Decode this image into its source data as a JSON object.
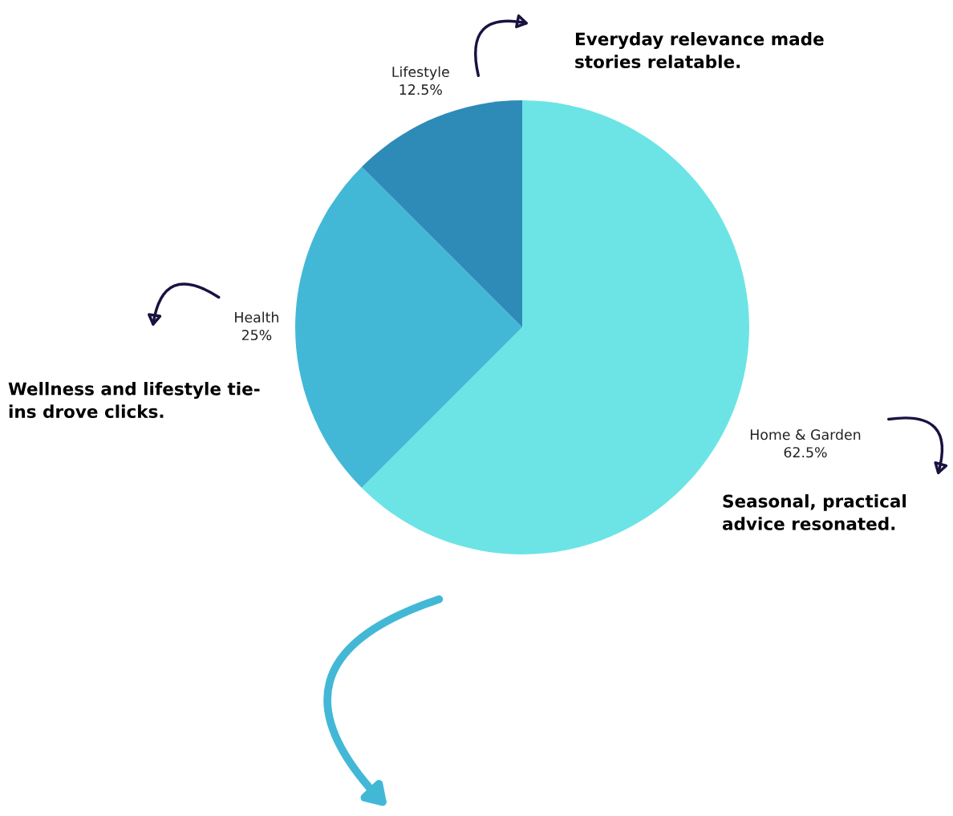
{
  "chart_data": {
    "type": "pie",
    "categories": [
      "Home & Garden",
      "Health",
      "Lifestyle"
    ],
    "values": [
      62.5,
      25,
      12.5
    ],
    "value_labels": [
      "62.5%",
      "25%",
      "12.5%"
    ],
    "colors": [
      "#6ce4e6",
      "#43b8d6",
      "#2e8bb8"
    ],
    "annotations": [
      "Everyday relevance made\nstories relatable.",
      "Wellness and lifestyle tie-\nins drove clicks.",
      "Seasonal, practical\nadvice resonated."
    ]
  }
}
